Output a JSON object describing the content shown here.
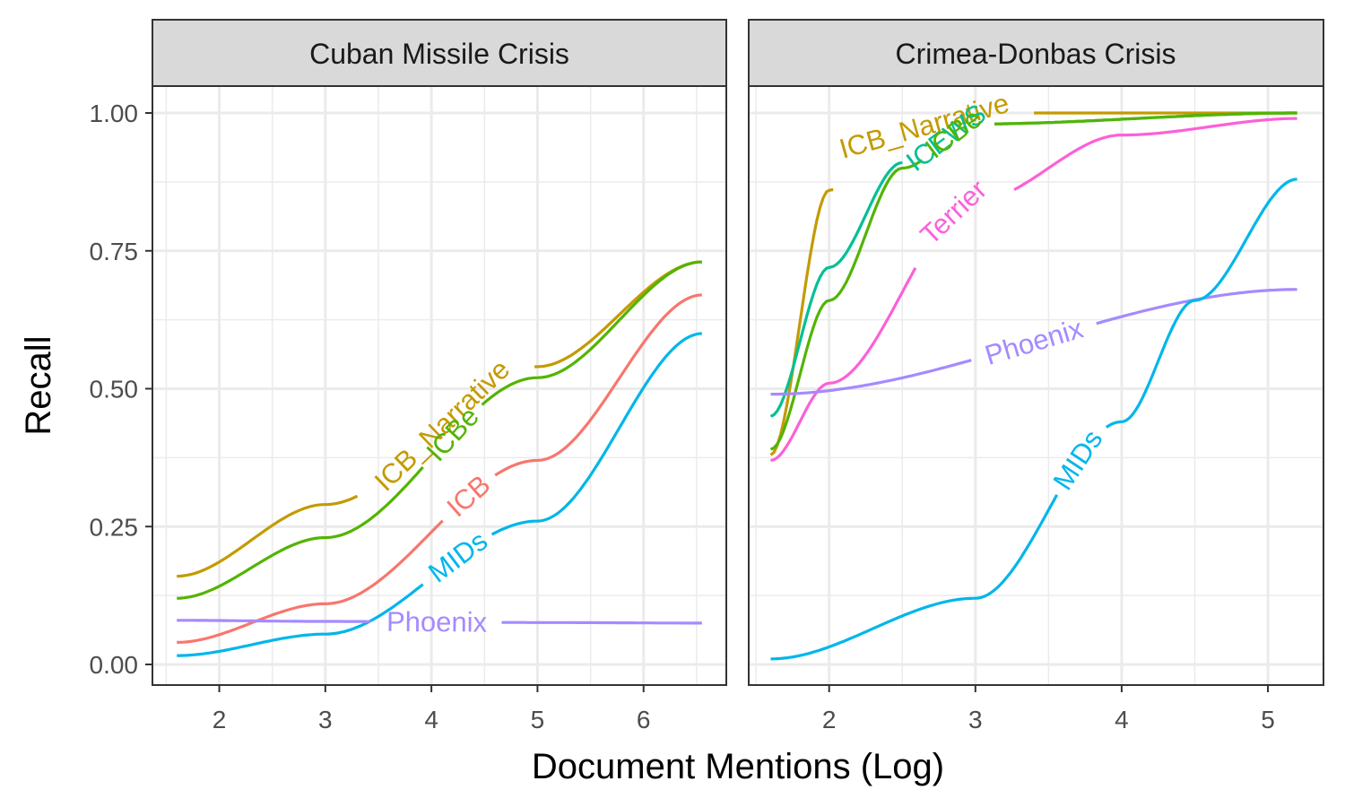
{
  "chart_data": {
    "type": "line",
    "xlabel": "Document Mentions (Log)",
    "ylabel": "Recall",
    "ylim": [
      0,
      1
    ],
    "yticks": [
      "0.00",
      "0.25",
      "0.50",
      "0.75",
      "1.00"
    ],
    "grid": true,
    "legend": "none (direct labels on lines)",
    "colors": {
      "ICB": "#F8766D",
      "ICB_Narrative": "#C49A00",
      "ICBe": "#53B400",
      "ICEWS": "#00C094",
      "MIDs": "#00B6EB",
      "Phoenix": "#A58AFF",
      "Terrier": "#FB61D7"
    },
    "panels": [
      {
        "title": "Cuban Missile Crisis",
        "xlim": [
          1.6,
          6.55
        ],
        "xticks": [
          2,
          3,
          4,
          5,
          6
        ],
        "series": [
          {
            "name": "ICB_Narrative",
            "x": [
              1.6,
              3.0,
              5.0,
              6.55
            ],
            "y": [
              0.16,
              0.29,
              0.54,
              0.73
            ],
            "label_x": 4.1
          },
          {
            "name": "ICBe",
            "x": [
              1.6,
              3.0,
              5.0,
              6.55
            ],
            "y": [
              0.12,
              0.23,
              0.52,
              0.73
            ],
            "label_x": 4.2
          },
          {
            "name": "ICB",
            "x": [
              1.6,
              3.0,
              5.0,
              6.55
            ],
            "y": [
              0.04,
              0.11,
              0.37,
              0.67
            ],
            "label_x": 4.35
          },
          {
            "name": "MIDs",
            "x": [
              1.6,
              3.0,
              5.0,
              6.55
            ],
            "y": [
              0.016,
              0.055,
              0.26,
              0.6
            ],
            "label_x": 4.25
          },
          {
            "name": "Phoenix",
            "x": [
              1.6,
              3.0,
              5.0,
              6.55
            ],
            "y": [
              0.08,
              0.078,
              0.076,
              0.075
            ],
            "label_x": 4.05
          }
        ]
      },
      {
        "title": "Crimea-Donbas Crisis",
        "xlim": [
          1.6,
          5.2
        ],
        "xticks": [
          2,
          3,
          4,
          5
        ],
        "series": [
          {
            "name": "ICB_Narrative",
            "x": [
              1.6,
              2.0,
              2.5,
              3.0,
              5.2
            ],
            "y": [
              0.38,
              0.86,
              0.97,
              1.0,
              1.0
            ],
            "label_x": 2.65
          },
          {
            "name": "ICEWS",
            "x": [
              1.6,
              2.0,
              2.5,
              3.0,
              5.2
            ],
            "y": [
              0.45,
              0.72,
              0.91,
              0.98,
              1.0
            ],
            "label_x": 2.8
          },
          {
            "name": "ICBe",
            "x": [
              1.6,
              2.0,
              2.5,
              3.0,
              5.2
            ],
            "y": [
              0.39,
              0.66,
              0.9,
              0.98,
              1.0
            ],
            "label_x": 2.85
          },
          {
            "name": "Terrier",
            "x": [
              1.6,
              2.0,
              3.0,
              4.0,
              5.2
            ],
            "y": [
              0.37,
              0.51,
              0.84,
              0.96,
              0.99
            ],
            "label_x": 2.85
          },
          {
            "name": "Phoenix",
            "x": [
              1.6,
              5.2
            ],
            "y": [
              0.49,
              0.68
            ],
            "label_x": 3.4
          },
          {
            "name": "MIDs",
            "x": [
              1.6,
              3.0,
              4.0,
              4.5,
              5.2
            ],
            "y": [
              0.01,
              0.12,
              0.44,
              0.66,
              0.88
            ],
            "label_x": 3.7
          }
        ]
      }
    ]
  }
}
